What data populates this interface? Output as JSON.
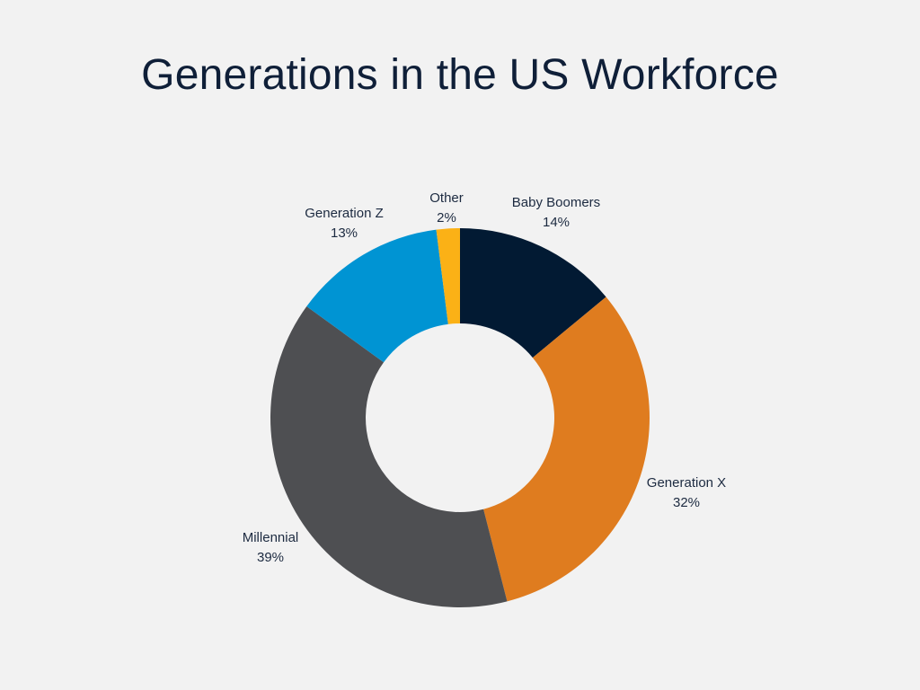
{
  "chart_data": {
    "type": "pie",
    "variant": "donut",
    "title": "Generations in the US Workforce",
    "categories": [
      "Baby Boomers",
      "Generation X",
      "Millennial",
      "Generation Z",
      "Other"
    ],
    "values": [
      14,
      32,
      39,
      13,
      2
    ],
    "value_labels": [
      "14%",
      "32%",
      "39%",
      "13%",
      "2%"
    ],
    "unit": "%",
    "colors": [
      "#021a33",
      "#df7c1f",
      "#4e4f52",
      "#0094d3",
      "#fbb116"
    ],
    "start": "12 o'clock",
    "direction": "clockwise",
    "legend": "none",
    "labels": "outside slices"
  }
}
